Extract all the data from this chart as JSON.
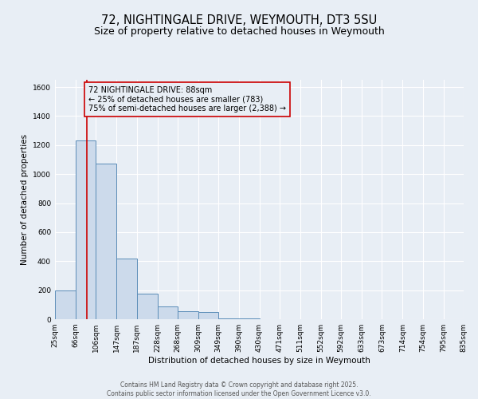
{
  "title_line1": "72, NIGHTINGALE DRIVE, WEYMOUTH, DT3 5SU",
  "title_line2": "Size of property relative to detached houses in Weymouth",
  "xlabel": "Distribution of detached houses by size in Weymouth",
  "ylabel": "Number of detached properties",
  "bar_left_edges": [
    25,
    66,
    106,
    147,
    187,
    228,
    268,
    309,
    349,
    390,
    430,
    471,
    511,
    552,
    592,
    633,
    673,
    714,
    754,
    795
  ],
  "bar_widths": [
    41,
    40,
    41,
    40,
    41,
    40,
    41,
    40,
    41,
    40,
    41,
    40,
    41,
    40,
    41,
    40,
    41,
    40,
    41,
    40
  ],
  "bar_heights": [
    200,
    1230,
    1070,
    420,
    175,
    90,
    55,
    50,
    8,
    3,
    0,
    0,
    0,
    0,
    0,
    0,
    0,
    0,
    0,
    0
  ],
  "bin_labels": [
    "25sqm",
    "66sqm",
    "106sqm",
    "147sqm",
    "187sqm",
    "228sqm",
    "268sqm",
    "309sqm",
    "349sqm",
    "390sqm",
    "430sqm",
    "471sqm",
    "511sqm",
    "552sqm",
    "592sqm",
    "633sqm",
    "673sqm",
    "714sqm",
    "754sqm",
    "795sqm",
    "835sqm"
  ],
  "bar_face_color": "#ccdaeb",
  "bar_edge_color": "#5b8db8",
  "property_line_x": 88,
  "property_line_color": "#cc0000",
  "annotation_line1": "72 NIGHTINGALE DRIVE: 88sqm",
  "annotation_line2": "← 25% of detached houses are smaller (783)",
  "annotation_line3": "75% of semi-detached houses are larger (2,388) →",
  "annotation_box_color": "#cc0000",
  "annotation_text_color": "#000000",
  "ylim": [
    0,
    1650
  ],
  "yticks": [
    0,
    200,
    400,
    600,
    800,
    1000,
    1200,
    1400,
    1600
  ],
  "background_color": "#e8eef5",
  "grid_color": "#ffffff",
  "footer_line1": "Contains HM Land Registry data © Crown copyright and database right 2025.",
  "footer_line2": "Contains public sector information licensed under the Open Government Licence v3.0.",
  "title_fontsize": 10.5,
  "subtitle_fontsize": 9,
  "axis_label_fontsize": 7.5,
  "tick_fontsize": 6.5,
  "annotation_fontsize": 7,
  "footer_fontsize": 5.5
}
